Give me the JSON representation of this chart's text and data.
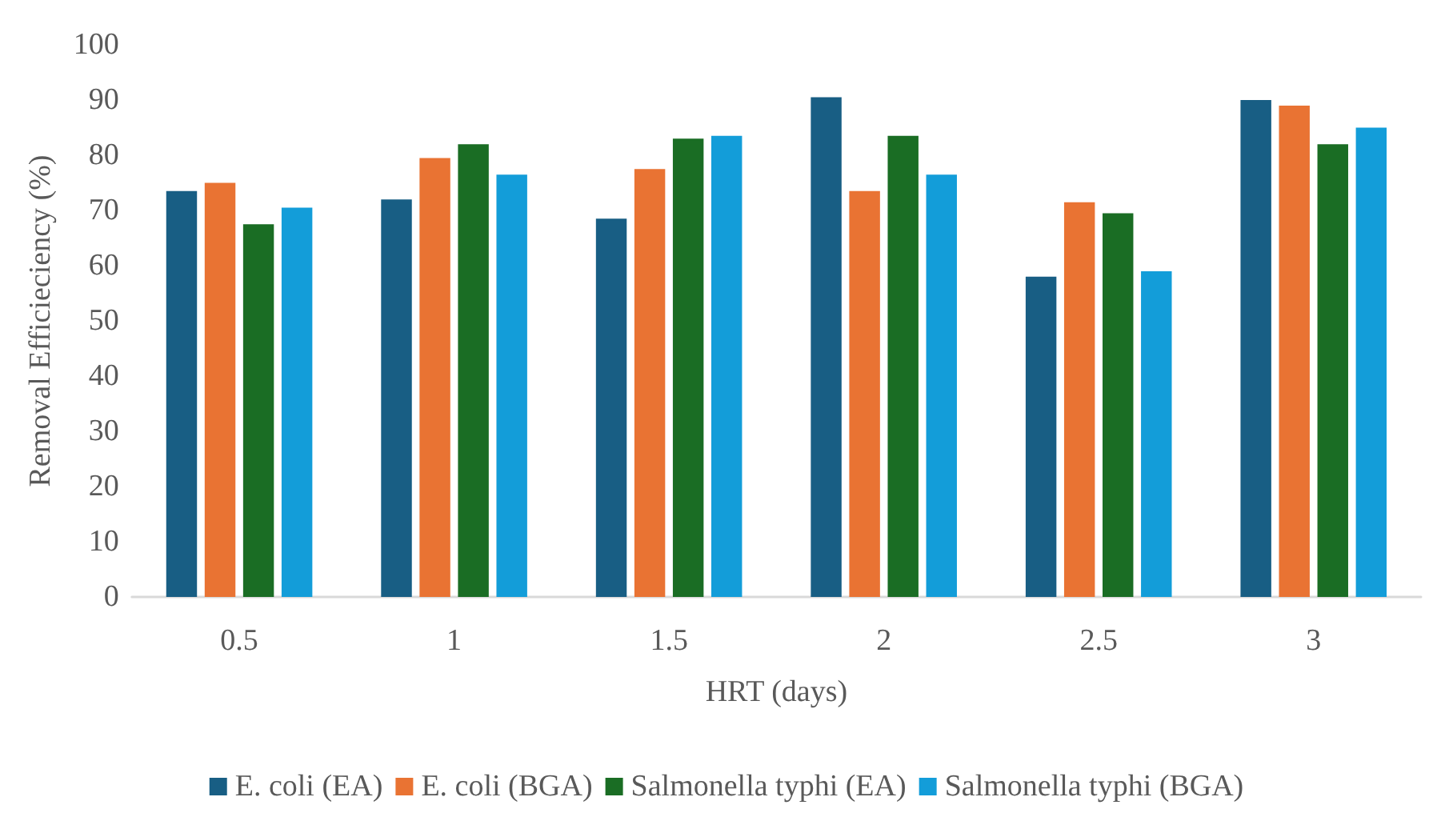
{
  "chart_data": {
    "type": "bar",
    "xlabel": "HRT (days)",
    "ylabel": "Removal Efficieciency (%)",
    "categories": [
      "0.5",
      "1",
      "1.5",
      "2",
      "2.5",
      "3"
    ],
    "series": [
      {
        "name": "E. coli (EA)",
        "color": "#185e84",
        "values": [
          73.5,
          72,
          68.5,
          90.5,
          58,
          90
        ]
      },
      {
        "name": "E. coli (BGA)",
        "color": "#e97333",
        "values": [
          75,
          79.5,
          77.5,
          73.5,
          71.5,
          89
        ]
      },
      {
        "name": "Salmonella typhi (EA)",
        "color": "#1a6d24",
        "values": [
          67.5,
          82,
          83,
          83.5,
          69.5,
          82
        ]
      },
      {
        "name": "Salmonella typhi (BGA)",
        "color": "#139dd9",
        "values": [
          70.5,
          76.5,
          83.5,
          76.5,
          59,
          85
        ]
      }
    ],
    "ylim": [
      0,
      100
    ],
    "yticks": [
      0,
      10,
      20,
      30,
      40,
      50,
      60,
      70,
      80,
      90,
      100
    ],
    "grid": false,
    "legend": "bottom"
  }
}
